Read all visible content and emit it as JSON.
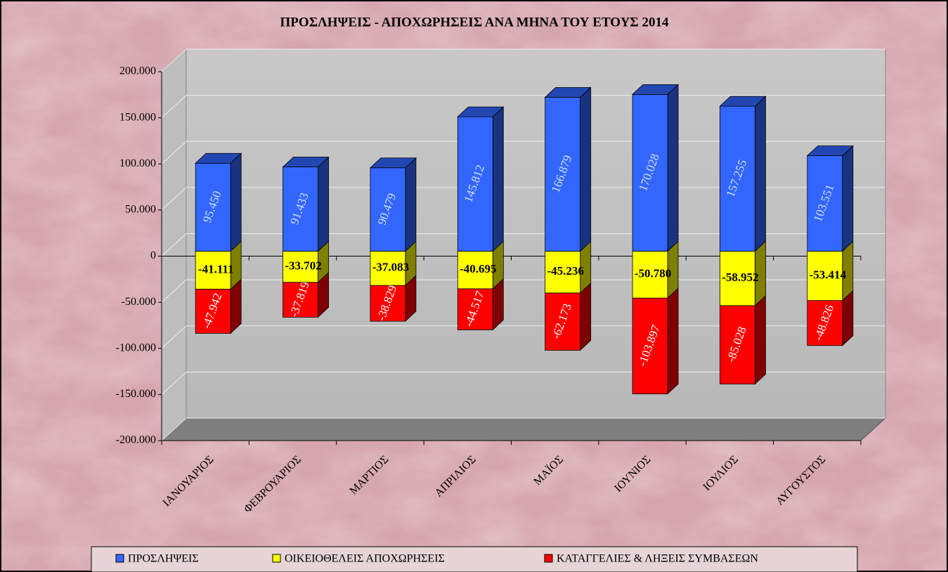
{
  "chart_data": {
    "type": "bar3d_stacked",
    "title": "ΠΡΟΣΛΗΨΕΙΣ - ΑΠΟΧΩΡΗΣΕΙΣ ΑΝΑ ΜΗΝΑ ΤΟΥ ΕΤΟΥΣ 2014",
    "categories": [
      "ΙΑΝΟΥΑΡΙΟΣ",
      "ΦΕΒΡΟΥΑΡΙΟΣ",
      "ΜΑΡΤΙΟΣ",
      "ΑΠΡΙΛΙΟΣ",
      "ΜΑΪΟΣ",
      "ΙΟΥΝΙΟΣ",
      "ΙΟΥΛΙΟΣ",
      "ΑΥΓΟΥΣΤΟΣ"
    ],
    "series": [
      {
        "name": "ΠΡΟΣΛΗΨΕΙΣ",
        "color": "#3366ff",
        "values": [
          95450,
          91433,
          90479,
          145812,
          166879,
          170028,
          157255,
          103551
        ],
        "value_labels": [
          "95.450",
          "91.433",
          "90.479",
          "145.812",
          "166.879",
          "170.028",
          "157.255",
          "103.551"
        ]
      },
      {
        "name": "ΟΙΚΕΙΟΘΕΛΕΙΣ ΑΠΟΧΩΡΗΣΕΙΣ",
        "color": "#ffff00",
        "values": [
          -41111,
          -33702,
          -37083,
          -40695,
          -45236,
          -50780,
          -58952,
          -53414
        ],
        "value_labels": [
          "-41.111",
          "-33.702",
          "-37.083",
          "-40.695",
          "-45.236",
          "-50.780",
          "-58.952",
          "-53.414"
        ]
      },
      {
        "name": "ΚΑΤΑΓΓΕΛΙΕΣ & ΛΗΞΕΙΣ ΣΥΜΒΑΣΕΩΝ",
        "color": "#ff0000",
        "values": [
          -47942,
          -37819,
          -38829,
          -44517,
          -62173,
          -103897,
          -85028,
          -48826
        ],
        "value_labels": [
          "-47.942",
          "-37.819",
          "-38.829",
          "-44.517",
          "-62.173",
          "-103.897",
          "-85.028",
          "-48.826"
        ]
      }
    ],
    "ylim": [
      -200000,
      200000
    ],
    "yticks": [
      {
        "value": -200000,
        "label": "-200.000"
      },
      {
        "value": -150000,
        "label": "-150.000"
      },
      {
        "value": -100000,
        "label": "-100.000"
      },
      {
        "value": -50000,
        "label": "-50.000"
      },
      0,
      {
        "value": 50000,
        "label": "50.000"
      },
      {
        "value": 100000,
        "label": "100.000"
      },
      {
        "value": 150000,
        "label": "150.000"
      },
      {
        "value": 200000,
        "label": "200.000"
      }
    ],
    "grid": true
  }
}
